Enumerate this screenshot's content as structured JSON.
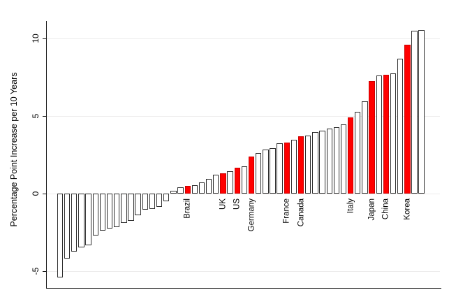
{
  "chart_data": {
    "type": "bar",
    "title": "",
    "xlabel": "",
    "ylabel": "Percentage Point Increase per 10 Years",
    "yticks": [
      10,
      5,
      0,
      -5
    ],
    "ylim": [
      -5.6,
      11
    ],
    "grid": true,
    "legend_position": "none",
    "colors": {
      "highlight_fill": "#ff0000",
      "highlight_outline": "#cc0000",
      "default_fill": "#ffffff",
      "default_outline": "#2f2f2f",
      "gridline": "#edecec",
      "axis": "#1a1a1a"
    },
    "bars": [
      {
        "v": -5.4,
        "red": false,
        "label": ""
      },
      {
        "v": -4.2,
        "red": false,
        "label": ""
      },
      {
        "v": -3.75,
        "red": false,
        "label": ""
      },
      {
        "v": -3.45,
        "red": false,
        "label": ""
      },
      {
        "v": -3.35,
        "red": false,
        "label": ""
      },
      {
        "v": -2.7,
        "red": false,
        "label": ""
      },
      {
        "v": -2.4,
        "red": false,
        "label": ""
      },
      {
        "v": -2.25,
        "red": false,
        "label": ""
      },
      {
        "v": -2.15,
        "red": false,
        "label": ""
      },
      {
        "v": -1.9,
        "red": false,
        "label": ""
      },
      {
        "v": -1.75,
        "red": false,
        "label": ""
      },
      {
        "v": -1.4,
        "red": false,
        "label": ""
      },
      {
        "v": -1.05,
        "red": false,
        "label": ""
      },
      {
        "v": -1.0,
        "red": false,
        "label": ""
      },
      {
        "v": -0.85,
        "red": false,
        "label": ""
      },
      {
        "v": -0.5,
        "red": false,
        "label": ""
      },
      {
        "v": 0.2,
        "red": false,
        "label": ""
      },
      {
        "v": 0.4,
        "red": false,
        "label": ""
      },
      {
        "v": 0.5,
        "red": true,
        "label": "Brazil"
      },
      {
        "v": 0.55,
        "red": false,
        "label": ""
      },
      {
        "v": 0.7,
        "red": false,
        "label": ""
      },
      {
        "v": 0.95,
        "red": false,
        "label": ""
      },
      {
        "v": 1.2,
        "red": false,
        "label": ""
      },
      {
        "v": 1.3,
        "red": true,
        "label": "UK"
      },
      {
        "v": 1.45,
        "red": false,
        "label": ""
      },
      {
        "v": 1.65,
        "red": true,
        "label": "US"
      },
      {
        "v": 1.75,
        "red": false,
        "label": ""
      },
      {
        "v": 2.4,
        "red": true,
        "label": "Germany"
      },
      {
        "v": 2.6,
        "red": false,
        "label": ""
      },
      {
        "v": 2.85,
        "red": false,
        "label": ""
      },
      {
        "v": 2.95,
        "red": false,
        "label": ""
      },
      {
        "v": 3.25,
        "red": false,
        "label": ""
      },
      {
        "v": 3.3,
        "red": true,
        "label": "France"
      },
      {
        "v": 3.45,
        "red": false,
        "label": ""
      },
      {
        "v": 3.7,
        "red": true,
        "label": "Canada"
      },
      {
        "v": 3.75,
        "red": false,
        "label": ""
      },
      {
        "v": 3.95,
        "red": false,
        "label": ""
      },
      {
        "v": 4.05,
        "red": false,
        "label": ""
      },
      {
        "v": 4.2,
        "red": false,
        "label": ""
      },
      {
        "v": 4.3,
        "red": false,
        "label": ""
      },
      {
        "v": 4.45,
        "red": false,
        "label": ""
      },
      {
        "v": 4.9,
        "red": true,
        "label": "Italy"
      },
      {
        "v": 5.25,
        "red": false,
        "label": ""
      },
      {
        "v": 5.95,
        "red": false,
        "label": ""
      },
      {
        "v": 7.25,
        "red": true,
        "label": "Japan"
      },
      {
        "v": 7.6,
        "red": false,
        "label": ""
      },
      {
        "v": 7.65,
        "red": true,
        "label": "China"
      },
      {
        "v": 7.75,
        "red": false,
        "label": ""
      },
      {
        "v": 8.7,
        "red": false,
        "label": ""
      },
      {
        "v": 9.6,
        "red": true,
        "label": "Korea"
      },
      {
        "v": 10.5,
        "red": false,
        "label": ""
      },
      {
        "v": 10.55,
        "red": false,
        "label": ""
      }
    ]
  }
}
